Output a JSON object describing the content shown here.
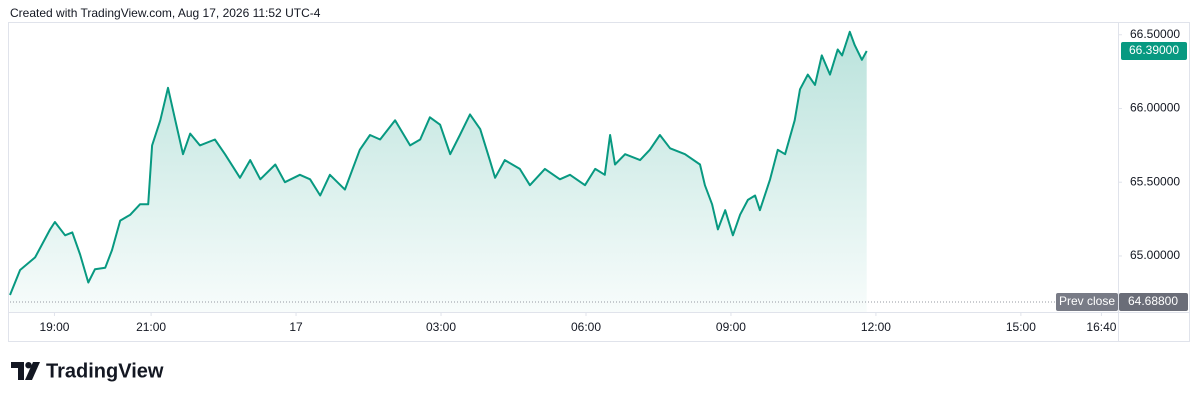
{
  "chart_data": {
    "type": "line",
    "title": "Created with TradingView.com, Aug 17, 2026 11:52 UTC-4",
    "brand": "TradingView",
    "color": "#089981",
    "x": [
      -5.92,
      -5.71,
      -5.4,
      -5.09,
      -4.99,
      -4.78,
      -4.63,
      -4.47,
      -4.3,
      -4.16,
      -3.95,
      -3.81,
      -3.64,
      -3.43,
      -3.23,
      -3.06,
      -2.98,
      -2.81,
      -2.65,
      -2.5,
      -2.34,
      -2.19,
      -1.99,
      -1.68,
      -1.47,
      -1.16,
      -0.95,
      -0.74,
      -0.43,
      -0.23,
      0.08,
      0.29,
      0.5,
      0.7,
      1.01,
      1.32,
      1.53,
      1.74,
      2.05,
      2.36,
      2.57,
      2.77,
      2.98,
      3.19,
      3.39,
      3.6,
      3.81,
      4.01,
      4.12,
      4.32,
      4.63,
      4.84,
      5.15,
      5.46,
      5.67,
      5.98,
      6.19,
      6.39,
      6.5,
      6.6,
      6.81,
      7.12,
      7.32,
      7.53,
      7.74,
      8.05,
      8.36,
      8.46,
      8.61,
      8.73,
      8.88,
      9.04,
      9.19,
      9.35,
      9.5,
      9.6,
      9.81,
      9.97,
      10.12,
      10.32,
      10.43,
      10.59,
      10.74,
      10.88,
      11.05,
      11.21,
      11.3,
      11.46,
      11.56,
      11.71,
      11.81
    ],
    "values": [
      64.735,
      64.905,
      64.99,
      65.18,
      65.23,
      65.14,
      65.16,
      65.01,
      64.82,
      64.91,
      64.92,
      65.04,
      65.24,
      65.28,
      65.35,
      65.35,
      65.75,
      65.92,
      66.14,
      65.92,
      65.69,
      65.83,
      65.75,
      65.79,
      65.69,
      65.53,
      65.65,
      65.52,
      65.62,
      65.5,
      65.55,
      65.52,
      65.41,
      65.55,
      65.45,
      65.72,
      65.82,
      65.79,
      65.92,
      65.75,
      65.79,
      65.94,
      65.89,
      65.69,
      65.82,
      65.96,
      65.86,
      65.65,
      65.53,
      65.65,
      65.59,
      65.48,
      65.59,
      65.52,
      65.55,
      65.48,
      65.59,
      65.55,
      65.82,
      65.62,
      65.69,
      65.65,
      65.72,
      65.82,
      65.73,
      65.69,
      65.62,
      65.48,
      65.35,
      65.18,
      65.31,
      65.14,
      65.28,
      65.38,
      65.41,
      65.31,
      65.52,
      65.72,
      65.69,
      65.92,
      66.13,
      66.23,
      66.16,
      66.36,
      66.23,
      66.4,
      66.36,
      66.52,
      66.43,
      66.33,
      66.39
    ],
    "xlim": [
      -5.92,
      17.01
    ],
    "xticks": [
      {
        "value": -5,
        "label": "19:00"
      },
      {
        "value": -3,
        "label": "21:00"
      },
      {
        "value": 0,
        "label": "17"
      },
      {
        "value": 3,
        "label": "03:00"
      },
      {
        "value": 6,
        "label": "06:00"
      },
      {
        "value": 9,
        "label": "09:00"
      },
      {
        "value": 12,
        "label": "12:00"
      },
      {
        "value": 15,
        "label": "15:00"
      },
      {
        "value": 16.667,
        "label": "16:40"
      }
    ],
    "ylim": [
      64.62,
      66.6
    ],
    "yticks": [
      {
        "value": 66.5,
        "label": "66.50000"
      },
      {
        "value": 66,
        "label": "66.00000"
      },
      {
        "value": 65.5,
        "label": "65.50000"
      },
      {
        "value": 65,
        "label": "65.00000"
      }
    ],
    "grid": false,
    "last_price": {
      "value": 66.39,
      "label": "66.39000"
    },
    "prev_close": {
      "label": "Prev close",
      "value": 64.688,
      "value_label": "64.68800"
    }
  }
}
